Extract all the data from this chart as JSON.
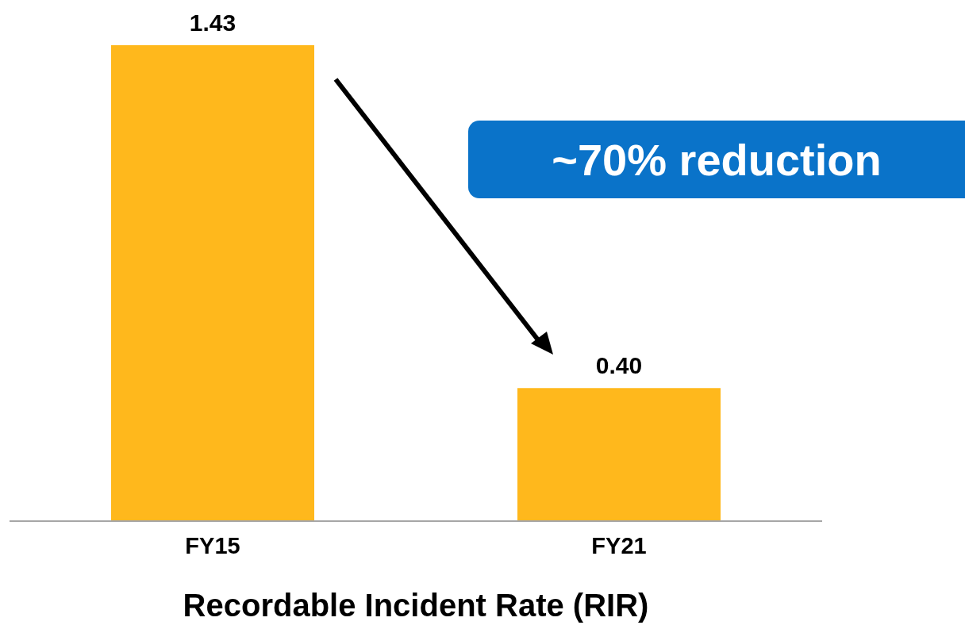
{
  "chart_data": {
    "type": "bar",
    "categories": [
      "FY15",
      "FY21"
    ],
    "values": [
      1.43,
      0.4
    ],
    "value_labels": [
      "1.43",
      "0.40"
    ],
    "color": "#ffb81c",
    "xlabel": "Recordable Incident Rate (RIR)",
    "annotations": [
      "~70% reduction"
    ],
    "grid": false,
    "legend": false
  }
}
